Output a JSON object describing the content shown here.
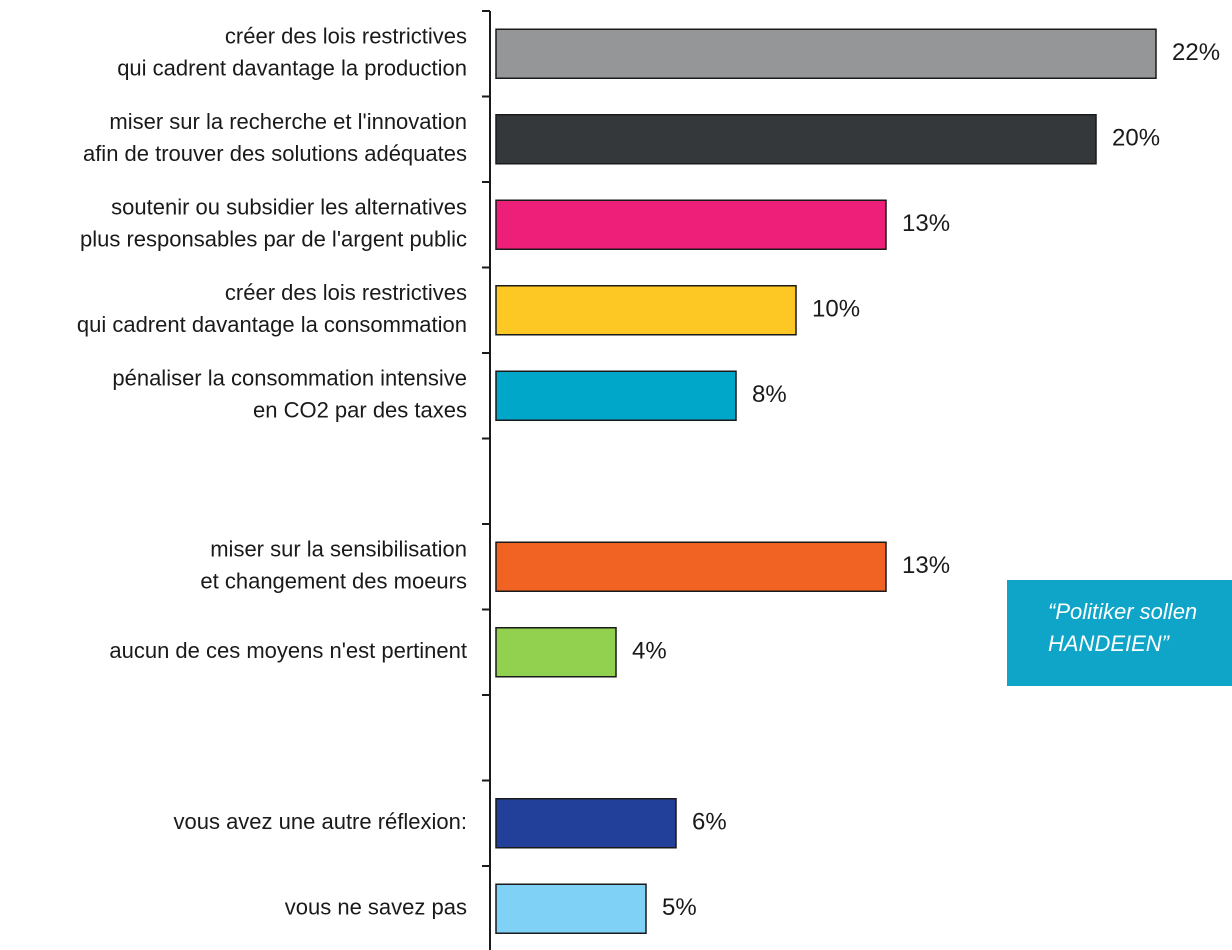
{
  "chart_data": {
    "type": "bar",
    "orientation": "horizontal",
    "categories": [
      [
        "créer des lois restrictives",
        "qui cadrent davantage la production"
      ],
      [
        "miser sur la recherche et l'innovation",
        "afin de trouver des solutions adéquates"
      ],
      [
        "soutenir ou subsidier les alternatives",
        "plus responsables par de l'argent public"
      ],
      [
        "créer des lois restrictives",
        "qui cadrent davantage la consommation"
      ],
      [
        "pénaliser la consommation intensive",
        "en CO2 par des taxes"
      ],
      null,
      [
        "miser sur la sensibilisation",
        "et changement des moeurs"
      ],
      [
        "aucun de ces moyens n'est pertinent"
      ],
      null,
      [
        "vous avez une autre réflexion:"
      ],
      [
        "vous ne savez pas"
      ]
    ],
    "values": [
      22,
      20,
      13,
      10,
      8,
      null,
      13,
      4,
      null,
      6,
      5
    ],
    "value_labels": [
      "22%",
      "20%",
      "13%",
      "10%",
      "8%",
      null,
      "13%",
      "4%",
      null,
      "6%",
      "5%"
    ],
    "colors": [
      "#949698",
      "#35383b",
      "#ee1f78",
      "#fdc824",
      "#00a7c8",
      null,
      "#f06322",
      "#92d14f",
      null,
      "#22409a",
      "#7fd2f6"
    ],
    "annotation": [
      "“Politiker sollen",
      "HANDEIEN”"
    ],
    "annotation_color": "#0ea5c9"
  }
}
